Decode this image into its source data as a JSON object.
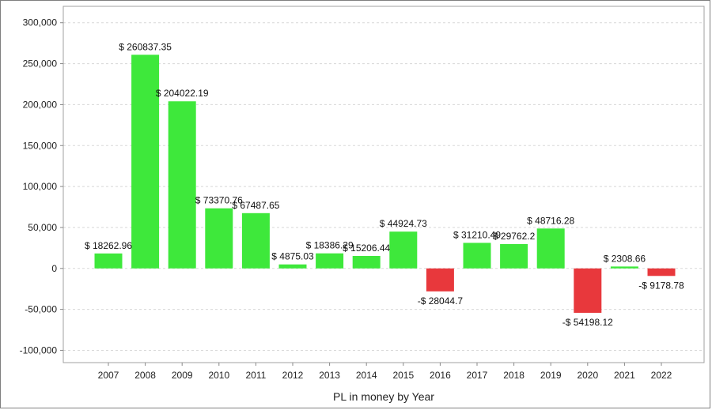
{
  "chart_data": {
    "type": "bar",
    "title": "",
    "xlabel": "PL in money by Year",
    "ylabel": "",
    "ylim": [
      -115000,
      320000
    ],
    "yticks": [
      -100000,
      -50000,
      0,
      50000,
      100000,
      150000,
      200000,
      250000,
      300000
    ],
    "ytick_labels": [
      "-100,000",
      "-50,000",
      "0",
      "50,000",
      "100,000",
      "150,000",
      "200,000",
      "250,000",
      "300,000"
    ],
    "grid": true,
    "colors": {
      "positive": "#3ee83b",
      "negative": "#e8383c"
    },
    "categories": [
      "2007",
      "2008",
      "2009",
      "2010",
      "2011",
      "2012",
      "2013",
      "2014",
      "2015",
      "2016",
      "2017",
      "2018",
      "2019",
      "2020",
      "2021",
      "2022"
    ],
    "values": [
      18262.96,
      260837.35,
      204022.19,
      73370.76,
      67487.65,
      4875.03,
      18386.29,
      15206.44,
      44924.73,
      -28044.7,
      31210.49,
      29762.2,
      48716.28,
      -54198.12,
      2308.66,
      -9178.78
    ],
    "data_labels": [
      "$ 18262.96",
      "$ 260837.35",
      "$ 204022.19",
      "$ 73370.76",
      "$ 67487.65",
      "$ 4875.03",
      "$ 18386.29",
      "$ 15206.44",
      "$ 44924.73",
      "-$ 28044.7",
      "$ 31210.49",
      "$ 29762.2",
      "$ 48716.28",
      "-$ 54198.12",
      "$ 2308.66",
      "-$ 9178.78"
    ]
  }
}
